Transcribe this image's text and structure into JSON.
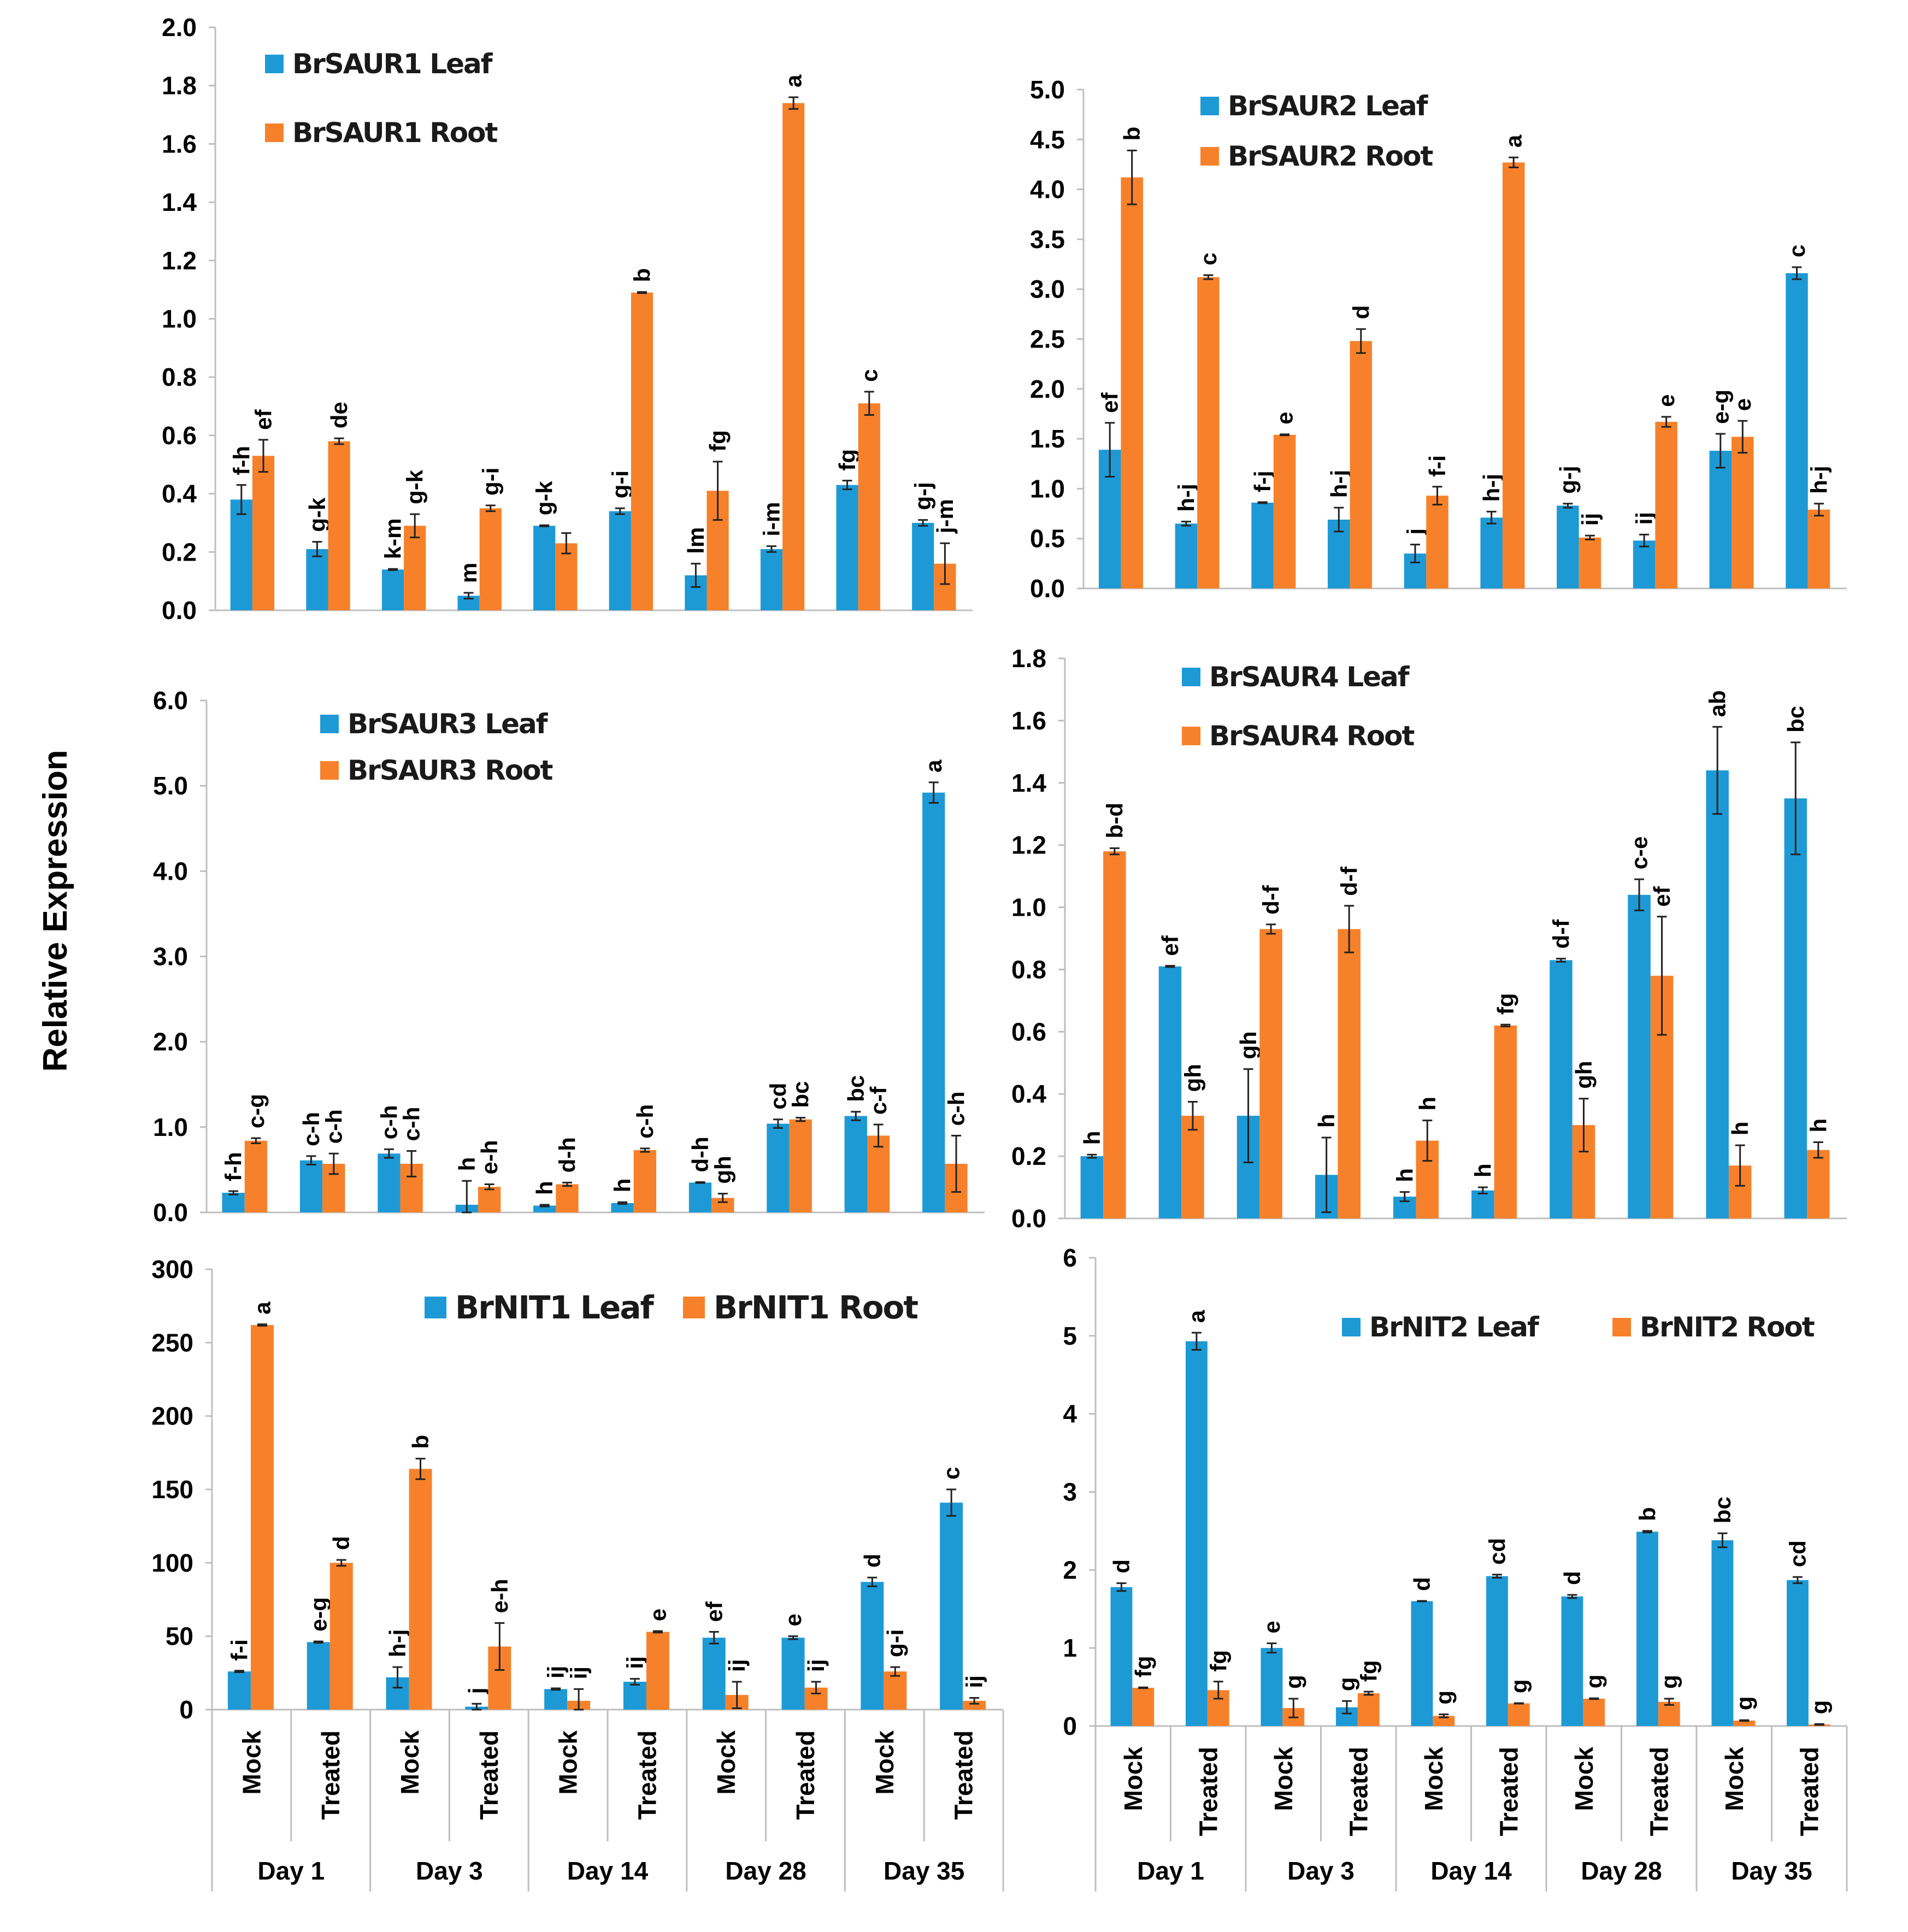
{
  "y_axis_label": "Relative Expression",
  "x_categories": [
    "Mock",
    "Treated",
    "Mock",
    "Treated",
    "Mock",
    "Treated",
    "Mock",
    "Treated",
    "Mock",
    "Treated"
  ],
  "x_groups": [
    "Day 1",
    "Day 3",
    "Day 14",
    "Day 28",
    "Day 35"
  ],
  "colors": {
    "leaf": "#1d9ad6",
    "root": "#f7812a",
    "axis": "#bfbfbf",
    "error": "#222222"
  },
  "chart_data": [
    {
      "type": "bar",
      "gene": "BrSAUR1",
      "ylim": [
        0,
        2.0
      ],
      "yticks": [
        "0.0",
        "0.2",
        "0.4",
        "0.6",
        "0.8",
        "1.0",
        "1.2",
        "1.4",
        "1.6",
        "1.8",
        "2.0"
      ],
      "legend_placement": "top-left",
      "series": [
        {
          "name": "BrSAUR1 Leaf",
          "color": "#1d9ad6",
          "values": [
            0.38,
            0.21,
            0.14,
            0.05,
            0.29,
            0.34,
            0.12,
            0.21,
            0.43,
            0.3
          ],
          "errors": [
            0.05,
            0.025,
            0.002,
            0.01,
            0.002,
            0.01,
            0.04,
            0.01,
            0.015,
            0.01
          ],
          "letters": [
            "f-h",
            "g-k",
            "k-m",
            "m",
            "g-k",
            "g-i",
            "lm",
            "i-m",
            "fg",
            "g-j"
          ]
        },
        {
          "name": "BrSAUR1 Root",
          "color": "#f7812a",
          "values": [
            0.53,
            0.58,
            0.29,
            0.35,
            0.23,
            1.09,
            0.41,
            1.74,
            0.71,
            0.16
          ],
          "errors": [
            0.055,
            0.01,
            0.04,
            0.01,
            0.035,
            0.002,
            0.1,
            0.02,
            0.04,
            0.07
          ],
          "letters": [
            "ef",
            "de",
            "g-k",
            "g-i",
            "",
            "b",
            "fg",
            "a",
            "c",
            "j-m"
          ]
        }
      ]
    },
    {
      "type": "bar",
      "gene": "BrSAUR2",
      "ylim": [
        0,
        5.0
      ],
      "yticks": [
        "0.0",
        "0.5",
        "1.0",
        "1.5",
        "2.0",
        "2.5",
        "3.0",
        "3.5",
        "4.0",
        "4.5",
        "5.0"
      ],
      "legend_placement": "top-left",
      "series": [
        {
          "name": "BrSAUR2 Leaf",
          "color": "#1d9ad6",
          "values": [
            1.39,
            0.65,
            0.86,
            0.69,
            0.35,
            0.71,
            0.83,
            0.48,
            1.38,
            3.16
          ],
          "errors": [
            0.27,
            0.02,
            0.005,
            0.12,
            0.09,
            0.06,
            0.02,
            0.06,
            0.17,
            0.06
          ],
          "letters": [
            "ef",
            "h-j",
            "f-j",
            "h-j",
            "j",
            "h-j",
            "g-j",
            "ij",
            "e-g",
            "c"
          ]
        },
        {
          "name": "BrSAUR2 Root",
          "color": "#f7812a",
          "values": [
            4.12,
            3.12,
            1.54,
            2.48,
            0.93,
            4.27,
            0.51,
            1.67,
            1.52,
            0.79
          ],
          "errors": [
            0.27,
            0.02,
            0.005,
            0.12,
            0.09,
            0.05,
            0.02,
            0.05,
            0.16,
            0.06
          ],
          "letters": [
            "b",
            "c",
            "e",
            "d",
            "f-i",
            "a",
            "ij",
            "e",
            "e",
            "h-j"
          ]
        }
      ]
    },
    {
      "type": "bar",
      "gene": "BrSAUR3",
      "ylim": [
        0,
        6.0
      ],
      "yticks": [
        "0.0",
        "1.0",
        "2.0",
        "3.0",
        "4.0",
        "5.0",
        "6.0"
      ],
      "legend_placement": "top-left",
      "series": [
        {
          "name": "BrSAUR3 Leaf",
          "color": "#1d9ad6",
          "values": [
            0.23,
            0.61,
            0.69,
            0.09,
            0.08,
            0.11,
            0.35,
            1.04,
            1.13,
            4.92
          ],
          "errors": [
            0.02,
            0.05,
            0.05,
            0.28,
            0.01,
            0.01,
            0.005,
            0.05,
            0.05,
            0.12
          ],
          "letters": [
            "f-h",
            "c-h",
            "c-h",
            "h",
            "h",
            "h",
            "d-h",
            "cd",
            "bc",
            "a"
          ]
        },
        {
          "name": "BrSAUR3 Root",
          "color": "#f7812a",
          "values": [
            0.84,
            0.57,
            0.57,
            0.3,
            0.33,
            0.73,
            0.17,
            1.09,
            0.9,
            0.57
          ],
          "errors": [
            0.03,
            0.12,
            0.15,
            0.03,
            0.02,
            0.02,
            0.05,
            0.02,
            0.13,
            0.33
          ],
          "letters": [
            "c-g",
            "c-h",
            "c-h",
            "e-h",
            "d-h",
            "c-h",
            "gh",
            "bc",
            "c-f",
            "c-h"
          ]
        }
      ]
    },
    {
      "type": "bar",
      "gene": "BrSAUR4",
      "ylim": [
        0,
        1.8
      ],
      "yticks": [
        "0.0",
        "0.2",
        "0.4",
        "0.6",
        "0.8",
        "1.0",
        "1.2",
        "1.4",
        "1.6",
        "1.8"
      ],
      "legend_placement": "top-left",
      "series": [
        {
          "name": "BrSAUR4 Leaf",
          "color": "#1d9ad6",
          "values": [
            0.2,
            0.81,
            0.33,
            0.14,
            0.07,
            0.09,
            0.83,
            1.04,
            1.44,
            1.35
          ],
          "errors": [
            0.005,
            0.002,
            0.15,
            0.12,
            0.015,
            0.01,
            0.005,
            0.05,
            0.14,
            0.18
          ],
          "letters": [
            "h",
            "ef",
            "gh",
            "h",
            "h",
            "h",
            "d-f",
            "c-e",
            "ab",
            "bc"
          ]
        },
        {
          "name": "BrSAUR4 Root",
          "color": "#f7812a",
          "values": [
            1.18,
            0.33,
            0.93,
            0.93,
            0.25,
            0.62,
            0.3,
            0.78,
            0.17,
            0.22
          ],
          "errors": [
            0.01,
            0.045,
            0.015,
            0.075,
            0.065,
            0.003,
            0.085,
            0.19,
            0.065,
            0.025
          ],
          "letters": [
            "b-d",
            "gh",
            "d-f",
            "d-f",
            "h",
            "fg",
            "gh",
            "ef",
            "h",
            "h"
          ]
        }
      ]
    },
    {
      "type": "bar",
      "gene": "BrNIT1",
      "ylim": [
        0,
        300
      ],
      "yticks": [
        "0",
        "50",
        "100",
        "150",
        "200",
        "250",
        "300"
      ],
      "legend_placement": "top-right",
      "series": [
        {
          "name": "BrNIT1 Leaf",
          "color": "#1d9ad6",
          "values": [
            26,
            46,
            22,
            2,
            14,
            19,
            49,
            49,
            87,
            141
          ],
          "errors": [
            0.5,
            0.5,
            7,
            2,
            0.5,
            2,
            4,
            1,
            3,
            9
          ],
          "letters": [
            "f-i",
            "e-g",
            "h-j",
            "j",
            "ij",
            "ij",
            "ef",
            "e",
            "d",
            "c"
          ]
        },
        {
          "name": "BrNIT1 Root",
          "color": "#f7812a",
          "values": [
            262,
            100,
            164,
            43,
            6,
            53,
            10,
            15,
            26,
            6
          ],
          "errors": [
            0.5,
            2,
            7,
            16,
            8,
            0.5,
            9,
            4,
            3,
            2
          ],
          "letters": [
            "a",
            "d",
            "b",
            "e-h",
            "ij",
            "e",
            "ij",
            "ij",
            "g-i",
            "ij"
          ]
        }
      ]
    },
    {
      "type": "bar",
      "gene": "BrNIT2",
      "ylim": [
        0,
        6
      ],
      "yticks": [
        "0",
        "1",
        "2",
        "3",
        "4",
        "5",
        "6"
      ],
      "legend_placement": "top-right",
      "series": [
        {
          "name": "BrNIT2 Leaf",
          "color": "#1d9ad6",
          "values": [
            1.78,
            4.93,
            1.0,
            0.24,
            1.6,
            1.92,
            1.66,
            2.49,
            2.38,
            1.87
          ],
          "errors": [
            0.05,
            0.11,
            0.06,
            0.08,
            0.003,
            0.02,
            0.02,
            0.01,
            0.09,
            0.04
          ],
          "letters": [
            "d",
            "a",
            "e",
            "g",
            "d",
            "cd",
            "d",
            "b",
            "bc",
            "cd"
          ]
        },
        {
          "name": "BrNIT2 Root",
          "color": "#f7812a",
          "values": [
            0.49,
            0.46,
            0.23,
            0.42,
            0.13,
            0.29,
            0.35,
            0.31,
            0.07,
            0.02
          ],
          "errors": [
            0.005,
            0.11,
            0.12,
            0.02,
            0.02,
            0.003,
            0.005,
            0.04,
            0.005,
            0.005
          ],
          "letters": [
            "fg",
            "fg",
            "g",
            "fg",
            "g",
            "g",
            "g",
            "g",
            "g",
            "g"
          ]
        }
      ]
    }
  ]
}
